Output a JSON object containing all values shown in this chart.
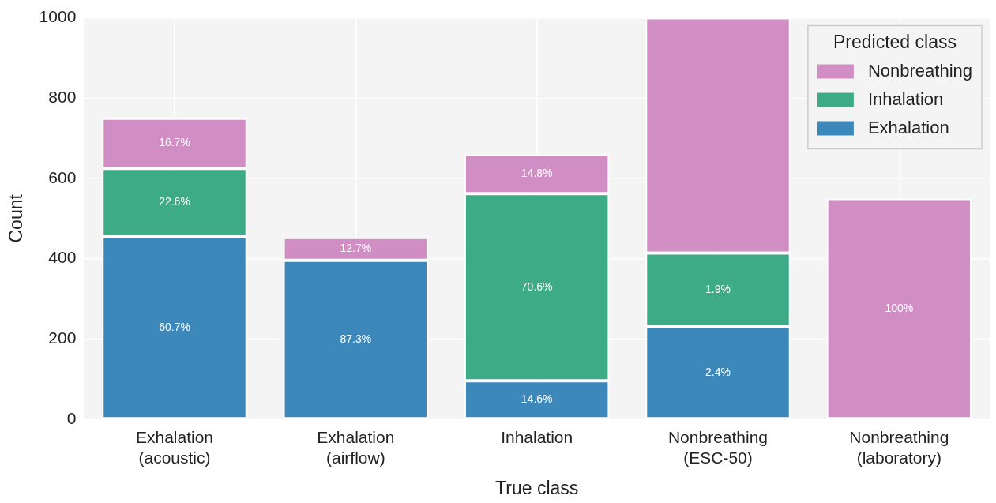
{
  "chart_data": {
    "type": "bar",
    "stacked": true,
    "xlabel": "True class",
    "ylabel": "Count",
    "legend_title": "Predicted class",
    "legend": "top right",
    "grid": true,
    "categories": [
      "Exhalation\n(acoustic)",
      "Exhalation\n(airflow)",
      "Inhalation",
      "Nonbreathing\n(ESC-50)",
      "Nonbreathing\n(laboratory)"
    ],
    "ylim": [
      0,
      1000
    ],
    "yticks": [
      0,
      200,
      400,
      600,
      800,
      1000
    ],
    "series": [
      {
        "name": "Exhalation",
        "color": "#3c88bb",
        "values": [
          455,
          396,
          96,
          232,
          0
        ]
      },
      {
        "name": "Inhalation",
        "color": "#3dab86",
        "values": [
          170,
          0,
          466,
          182,
          0
        ]
      },
      {
        "name": "Nonbreathing",
        "color": "#d08ec4",
        "values": [
          125,
          57,
          98,
          586,
          550
        ]
      }
    ],
    "annotations": [
      "60.7%",
      "22.6%",
      "16.7%",
      "87.3%",
      "12.7%",
      "14.6%",
      "70.6%",
      "14.8%",
      "2.4%",
      "1.9%",
      "100%"
    ]
  }
}
